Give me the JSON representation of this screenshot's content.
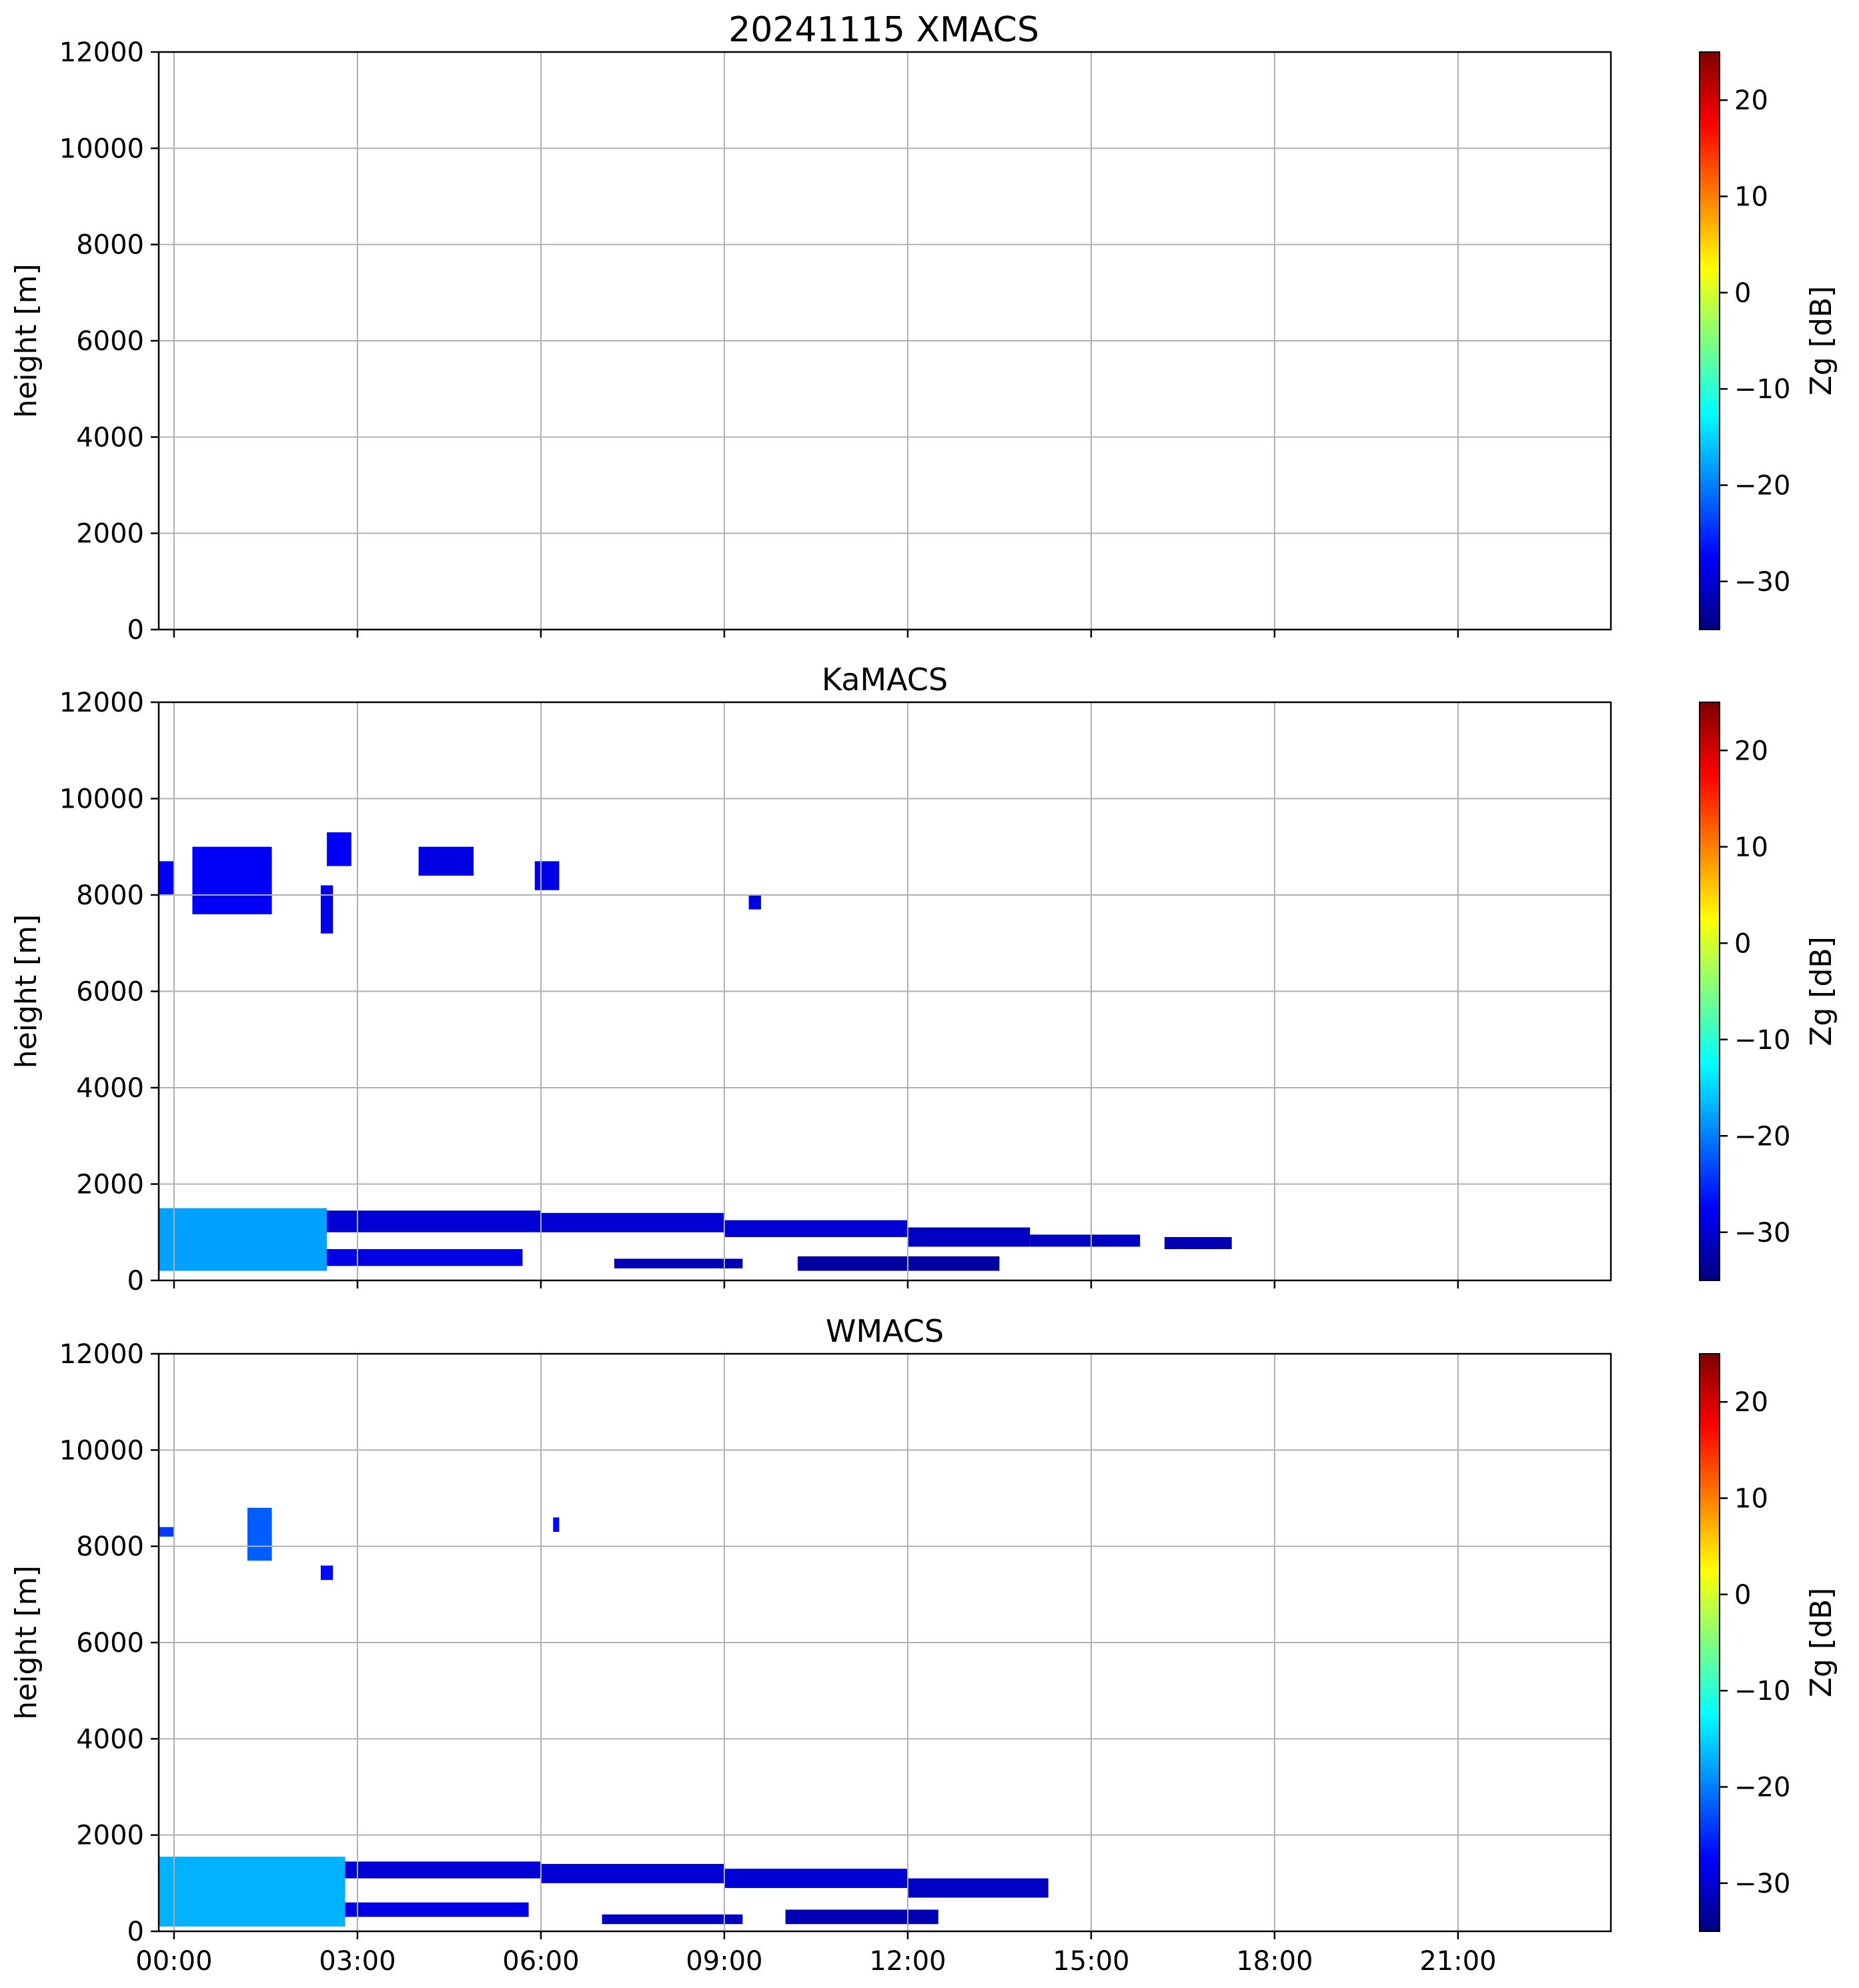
{
  "figure": {
    "main_title": "20241115 XMACS"
  },
  "panels": [
    {
      "title": "20241115 XMACS",
      "ylabel": "height [m]",
      "colorbar_label": "Zg [dB]"
    },
    {
      "title": "KaMACS",
      "ylabel": "height [m]",
      "colorbar_label": "Zg [dB]"
    },
    {
      "title": "WMACS",
      "ylabel": "height [m]",
      "colorbar_label": "Zg [dB]"
    }
  ],
  "colormap": {
    "name": "jet",
    "stops": [
      "#00007f",
      "#0000ff",
      "#007fff",
      "#00ffff",
      "#7fff7f",
      "#ffff00",
      "#ff7f00",
      "#ff0000",
      "#7f0000"
    ]
  },
  "chart_data": [
    {
      "type": "heatmap",
      "title": "20241115 XMACS",
      "ylabel": "height [m]",
      "ylim": [
        0,
        12000
      ],
      "yticks": [
        0,
        2000,
        4000,
        6000,
        8000,
        10000,
        12000
      ],
      "xlim_hours": [
        -0.25,
        23.5
      ],
      "xticks": [
        "00:00",
        "03:00",
        "06:00",
        "09:00",
        "12:00",
        "15:00",
        "18:00",
        "21:00"
      ],
      "xticks_hours": [
        0,
        3,
        6,
        9,
        12,
        15,
        18,
        21
      ],
      "colorbar": {
        "label": "Zg [dB]",
        "range": [
          -35,
          25
        ],
        "ticks": [
          -30,
          -20,
          -10,
          0,
          10,
          20
        ]
      },
      "grid": true,
      "layers": []
    },
    {
      "type": "heatmap",
      "title": "KaMACS",
      "ylabel": "height [m]",
      "ylim": [
        0,
        12000
      ],
      "yticks": [
        0,
        2000,
        4000,
        6000,
        8000,
        10000,
        12000
      ],
      "xlim_hours": [
        -0.25,
        23.5
      ],
      "xticks": [
        "00:00",
        "03:00",
        "06:00",
        "09:00",
        "12:00",
        "15:00",
        "18:00",
        "21:00"
      ],
      "xticks_hours": [
        0,
        3,
        6,
        9,
        12,
        15,
        18,
        21
      ],
      "colorbar": {
        "label": "Zg [dB]",
        "range": [
          -35,
          25
        ],
        "ticks": [
          -30,
          -20,
          -10,
          0,
          10,
          20
        ]
      },
      "grid": true,
      "layers": [
        {
          "start_h": -0.25,
          "end_h": 2.5,
          "bottom_m": 200,
          "top_m": 1500,
          "zg_db": -18
        },
        {
          "start_h": 2.5,
          "end_h": 6.0,
          "bottom_m": 1000,
          "top_m": 1450,
          "zg_db": -30
        },
        {
          "start_h": 6.0,
          "end_h": 9.0,
          "bottom_m": 1000,
          "top_m": 1400,
          "zg_db": -30
        },
        {
          "start_h": 9.0,
          "end_h": 12.0,
          "bottom_m": 900,
          "top_m": 1250,
          "zg_db": -30
        },
        {
          "start_h": 12.0,
          "end_h": 14.0,
          "bottom_m": 700,
          "top_m": 1100,
          "zg_db": -31
        },
        {
          "start_h": 14.0,
          "end_h": 15.8,
          "bottom_m": 700,
          "top_m": 950,
          "zg_db": -31
        },
        {
          "start_h": 16.2,
          "end_h": 17.3,
          "bottom_m": 650,
          "top_m": 900,
          "zg_db": -32
        },
        {
          "start_h": 2.5,
          "end_h": 5.7,
          "bottom_m": 300,
          "top_m": 650,
          "zg_db": -29
        },
        {
          "start_h": 7.2,
          "end_h": 9.3,
          "bottom_m": 250,
          "top_m": 450,
          "zg_db": -32
        },
        {
          "start_h": 10.2,
          "end_h": 13.5,
          "bottom_m": 200,
          "top_m": 500,
          "zg_db": -33
        },
        {
          "start_h": -0.25,
          "end_h": 0.0,
          "bottom_m": 8000,
          "top_m": 8700,
          "zg_db": -28
        },
        {
          "start_h": 0.3,
          "end_h": 1.6,
          "bottom_m": 7600,
          "top_m": 9000,
          "zg_db": -28
        },
        {
          "start_h": 2.5,
          "end_h": 2.9,
          "bottom_m": 8600,
          "top_m": 9300,
          "zg_db": -28
        },
        {
          "start_h": 2.4,
          "end_h": 2.6,
          "bottom_m": 7200,
          "top_m": 8200,
          "zg_db": -29
        },
        {
          "start_h": 4.0,
          "end_h": 4.9,
          "bottom_m": 8400,
          "top_m": 9000,
          "zg_db": -29
        },
        {
          "start_h": 5.9,
          "end_h": 6.3,
          "bottom_m": 8100,
          "top_m": 8700,
          "zg_db": -29
        },
        {
          "start_h": 9.4,
          "end_h": 9.6,
          "bottom_m": 7700,
          "top_m": 8000,
          "zg_db": -29
        }
      ]
    },
    {
      "type": "heatmap",
      "title": "WMACS",
      "ylabel": "height [m]",
      "ylim": [
        0,
        12000
      ],
      "yticks": [
        0,
        2000,
        4000,
        6000,
        8000,
        10000,
        12000
      ],
      "xlim_hours": [
        -0.25,
        23.5
      ],
      "xticks": [
        "00:00",
        "03:00",
        "06:00",
        "09:00",
        "12:00",
        "15:00",
        "18:00",
        "21:00"
      ],
      "xticks_hours": [
        0,
        3,
        6,
        9,
        12,
        15,
        18,
        21
      ],
      "colorbar": {
        "label": "Zg [dB]",
        "range": [
          -35,
          25
        ],
        "ticks": [
          -30,
          -20,
          -10,
          0,
          10,
          20
        ]
      },
      "grid": true,
      "layers": [
        {
          "start_h": -0.25,
          "end_h": 2.8,
          "bottom_m": 100,
          "top_m": 1550,
          "zg_db": -17
        },
        {
          "start_h": 2.8,
          "end_h": 6.0,
          "bottom_m": 1100,
          "top_m": 1450,
          "zg_db": -30
        },
        {
          "start_h": 6.0,
          "end_h": 9.0,
          "bottom_m": 1000,
          "top_m": 1400,
          "zg_db": -30
        },
        {
          "start_h": 9.0,
          "end_h": 12.0,
          "bottom_m": 900,
          "top_m": 1300,
          "zg_db": -30
        },
        {
          "start_h": 12.0,
          "end_h": 14.3,
          "bottom_m": 700,
          "top_m": 1100,
          "zg_db": -31
        },
        {
          "start_h": 2.8,
          "end_h": 5.8,
          "bottom_m": 300,
          "top_m": 600,
          "zg_db": -29
        },
        {
          "start_h": 7.0,
          "end_h": 9.3,
          "bottom_m": 150,
          "top_m": 350,
          "zg_db": -31
        },
        {
          "start_h": 10.0,
          "end_h": 12.5,
          "bottom_m": 150,
          "top_m": 450,
          "zg_db": -32
        },
        {
          "start_h": -0.25,
          "end_h": 0.0,
          "bottom_m": 8200,
          "top_m": 8400,
          "zg_db": -24
        },
        {
          "start_h": 1.2,
          "end_h": 1.6,
          "bottom_m": 7700,
          "top_m": 8800,
          "zg_db": -22
        },
        {
          "start_h": 2.4,
          "end_h": 2.6,
          "bottom_m": 7300,
          "top_m": 7600,
          "zg_db": -27
        },
        {
          "start_h": 6.2,
          "end_h": 6.3,
          "bottom_m": 8300,
          "top_m": 8600,
          "zg_db": -27
        }
      ]
    }
  ]
}
